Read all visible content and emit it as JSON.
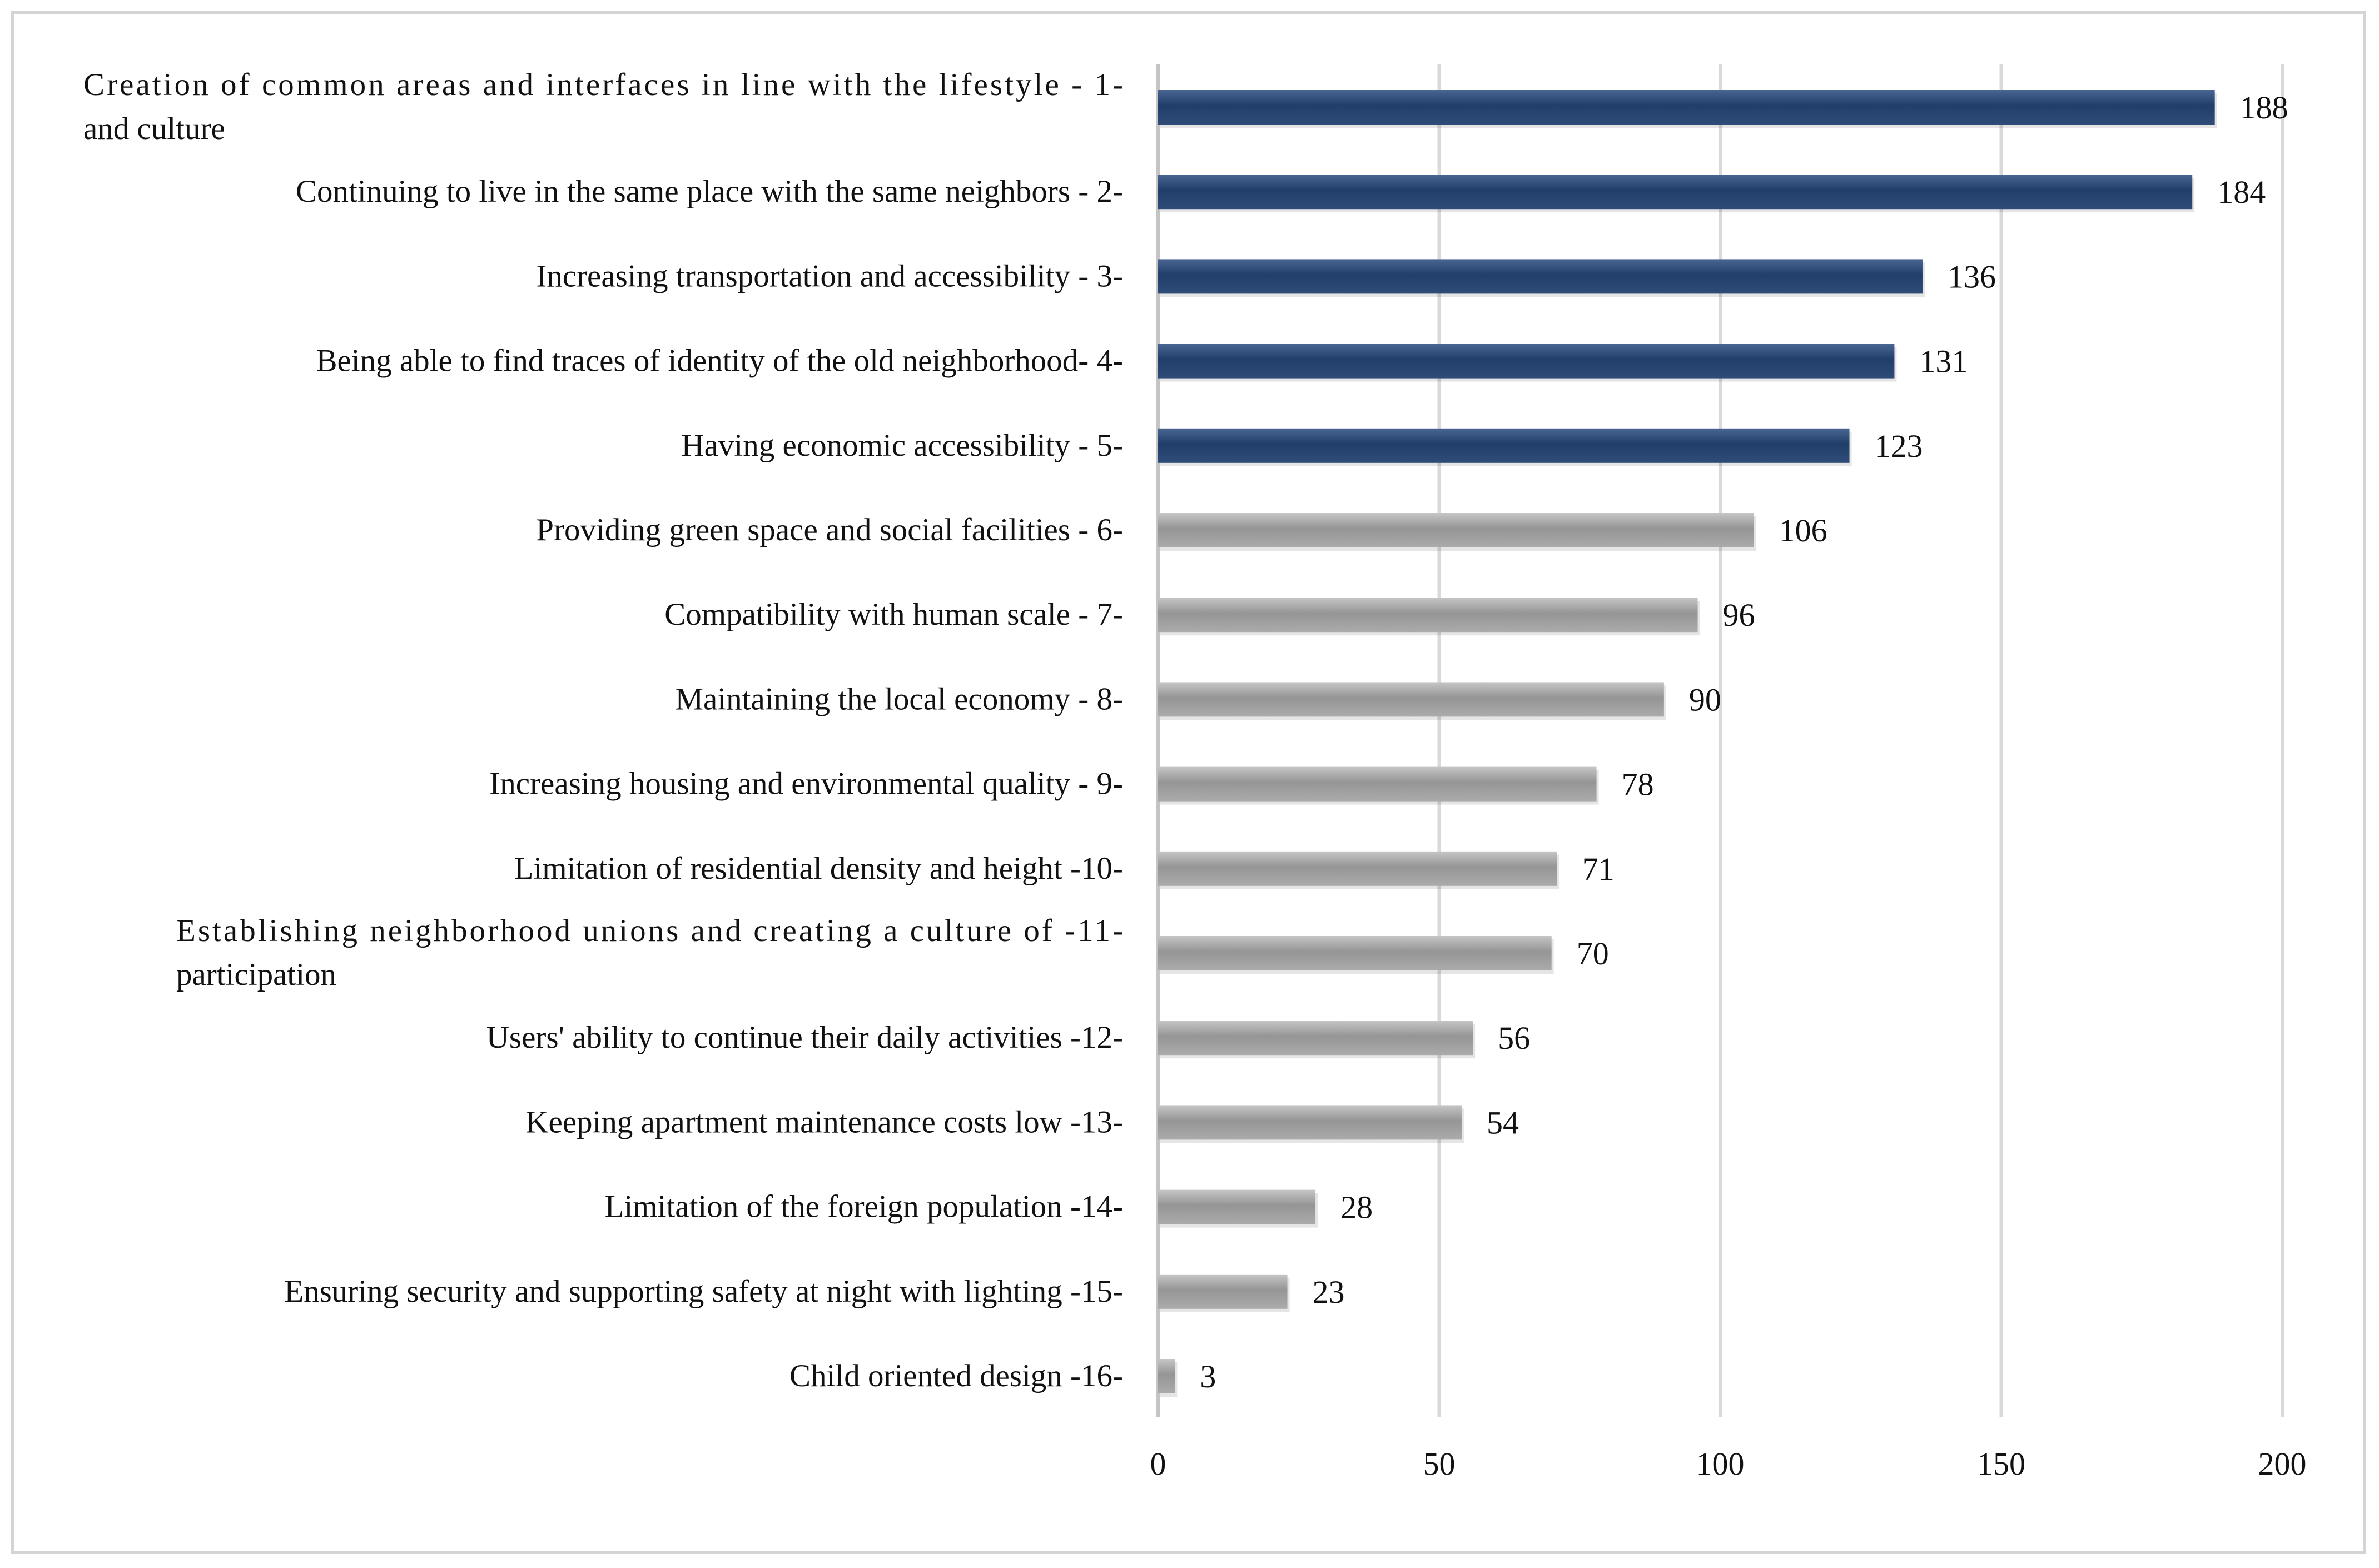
{
  "chart_data": {
    "type": "bar",
    "orientation": "horizontal",
    "title": "",
    "xlabel": "",
    "ylabel": "",
    "xlim": [
      0,
      200
    ],
    "xticks": [
      0,
      50,
      100,
      150,
      200
    ],
    "grid": true,
    "legend": "none",
    "colors": {
      "highlight": "#1f3a64",
      "default": "#9a9a9a"
    },
    "highlight_top_n": 5,
    "categories": [
      {
        "lines": [
          "Creation of common areas and interfaces in line with the lifestyle  - 1-",
          "and culture"
        ],
        "align": "left"
      },
      {
        "lines": [
          "Continuing to live in the same place with the same neighbors - 2-"
        ],
        "align": "right"
      },
      {
        "lines": [
          "Increasing transportation and accessibility - 3-"
        ],
        "align": "right"
      },
      {
        "lines": [
          "Being able to find traces of identity of the old neighborhood- 4-"
        ],
        "align": "right"
      },
      {
        "lines": [
          "Having economic accessibility - 5-"
        ],
        "align": "right"
      },
      {
        "lines": [
          "Providing green space and social facilities - 6-"
        ],
        "align": "right"
      },
      {
        "lines": [
          "Compatibility with human scale - 7-"
        ],
        "align": "right"
      },
      {
        "lines": [
          "Maintaining the local economy - 8-"
        ],
        "align": "right"
      },
      {
        "lines": [
          "Increasing housing and environmental quality - 9-"
        ],
        "align": "right"
      },
      {
        "lines": [
          "Limitation of residential density and height -10-"
        ],
        "align": "right"
      },
      {
        "lines": [
          "Establishing neighborhood unions and creating a culture of -11-",
          "participation"
        ],
        "align": "left"
      },
      {
        "lines": [
          "Users' ability to continue their daily activities -12-"
        ],
        "align": "right"
      },
      {
        "lines": [
          "Keeping apartment maintenance costs low -13-"
        ],
        "align": "right"
      },
      {
        "lines": [
          "Limitation of the foreign population -14-"
        ],
        "align": "right"
      },
      {
        "lines": [
          "Ensuring security and supporting safety at night with lighting -15-"
        ],
        "align": "right"
      },
      {
        "lines": [
          "Child oriented design -16-"
        ],
        "align": "right"
      }
    ],
    "values": [
      188,
      184,
      136,
      131,
      123,
      106,
      96,
      90,
      78,
      71,
      70,
      56,
      54,
      28,
      23,
      3
    ]
  }
}
